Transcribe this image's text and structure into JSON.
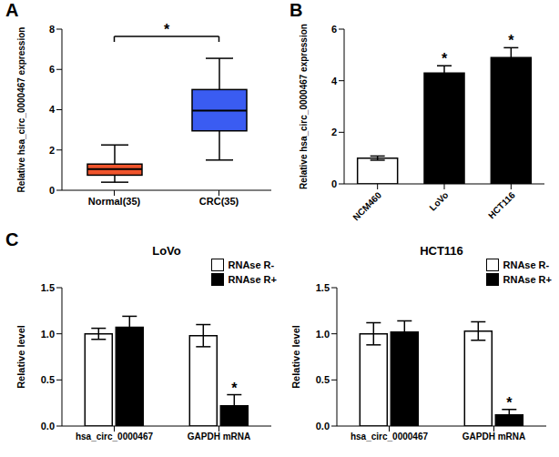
{
  "panel_labels": [
    "A",
    "B",
    "C"
  ],
  "chart_data": [
    {
      "type": "box",
      "categories": [
        "Normal(35)",
        "CRC(35)"
      ],
      "boxes": [
        {
          "min": 0.4,
          "q1": 0.75,
          "median": 1.05,
          "q3": 1.3,
          "max": 2.25
        },
        {
          "min": 1.5,
          "q1": 2.95,
          "median": 3.95,
          "q3": 5.0,
          "max": 6.55
        }
      ],
      "colors": [
        "#f0542c",
        "#3a5cf2"
      ],
      "ylabel": "Relative hsa_circ_0000467 expression",
      "ylim": [
        0,
        8
      ],
      "yticks": [
        0,
        2,
        4,
        6,
        8
      ],
      "annotation": "*"
    },
    {
      "type": "bar",
      "categories": [
        "NCM460",
        "LoVo",
        "HCT116"
      ],
      "values": [
        1.0,
        4.3,
        4.9
      ],
      "errors": [
        0.08,
        0.28,
        0.38
      ],
      "colors": [
        "#ffffff",
        "#000000",
        "#000000"
      ],
      "significance": [
        null,
        "*",
        "*"
      ],
      "ylabel": "Relative hsa_circ_0000467 expression",
      "ylim": [
        0,
        6
      ],
      "yticks": [
        0,
        2,
        4,
        6
      ]
    },
    {
      "type": "bar",
      "title": "LoVo",
      "categories": [
        "hsa_circ_0000467",
        "GAPDH mRNA"
      ],
      "series": [
        {
          "name": "RNAse R-",
          "color": "#ffffff",
          "values": [
            1.0,
            0.98
          ],
          "errors": [
            0.06,
            0.12
          ]
        },
        {
          "name": "RNAse R+",
          "color": "#000000",
          "values": [
            1.07,
            0.22
          ],
          "errors": [
            0.12,
            0.12
          ],
          "significance": [
            null,
            "*"
          ]
        }
      ],
      "ylabel": "Relative level",
      "ylim": [
        0,
        1.5
      ],
      "yticks": [
        {
          "value": 0,
          "label": "0.0"
        },
        0.5,
        {
          "value": 1,
          "label": "1.0"
        },
        1.5
      ],
      "legend": "upper right"
    },
    {
      "type": "bar",
      "title": "HCT116",
      "categories": [
        "hsa_circ_0000467",
        "GAPDH mRNA"
      ],
      "series": [
        {
          "name": "RNAse R-",
          "color": "#ffffff",
          "values": [
            1.0,
            1.03
          ],
          "errors": [
            0.12,
            0.1
          ]
        },
        {
          "name": "RNAse R+",
          "color": "#000000",
          "values": [
            1.02,
            0.12
          ],
          "errors": [
            0.12,
            0.06
          ],
          "significance": [
            null,
            "*"
          ]
        }
      ],
      "ylabel": "Relative level",
      "ylim": [
        0,
        1.5
      ],
      "yticks": [
        {
          "value": 0,
          "label": "0.0"
        },
        0.5,
        {
          "value": 1,
          "label": "1.0"
        },
        1.5
      ],
      "legend": "upper right"
    }
  ]
}
